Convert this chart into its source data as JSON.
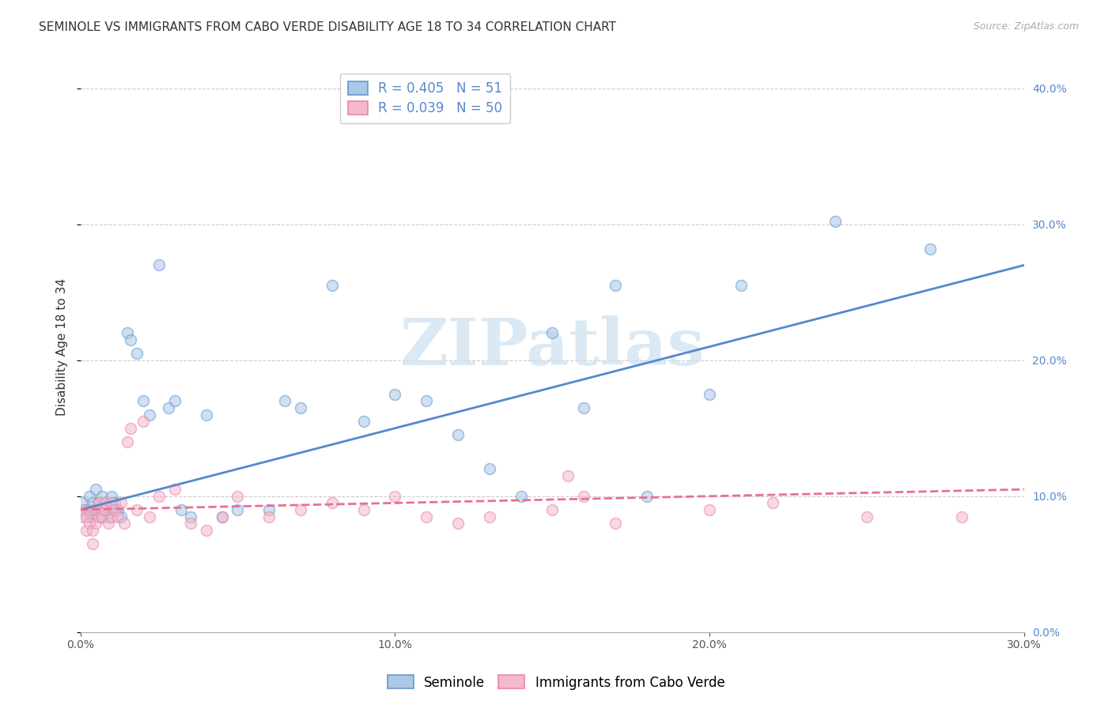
{
  "title": "SEMINOLE VS IMMIGRANTS FROM CABO VERDE DISABILITY AGE 18 TO 34 CORRELATION CHART",
  "source": "Source: ZipAtlas.com",
  "xlim": [
    0.0,
    0.3
  ],
  "ylim": [
    0.0,
    0.42
  ],
  "ylabel": "Disability Age 18 to 34",
  "legend_blue_R": "0.405",
  "legend_blue_N": "51",
  "legend_pink_R": "0.039",
  "legend_pink_N": "50",
  "seminole_x": [
    0.001,
    0.002,
    0.003,
    0.003,
    0.004,
    0.004,
    0.005,
    0.005,
    0.006,
    0.006,
    0.007,
    0.007,
    0.008,
    0.008,
    0.009,
    0.01,
    0.01,
    0.011,
    0.012,
    0.013,
    0.015,
    0.016,
    0.018,
    0.02,
    0.022,
    0.025,
    0.028,
    0.03,
    0.032,
    0.035,
    0.04,
    0.045,
    0.05,
    0.06,
    0.065,
    0.07,
    0.08,
    0.09,
    0.1,
    0.11,
    0.12,
    0.13,
    0.14,
    0.15,
    0.16,
    0.17,
    0.18,
    0.2,
    0.21,
    0.24,
    0.27
  ],
  "seminole_y": [
    0.095,
    0.09,
    0.085,
    0.1,
    0.085,
    0.095,
    0.09,
    0.105,
    0.095,
    0.09,
    0.085,
    0.1,
    0.09,
    0.095,
    0.085,
    0.09,
    0.1,
    0.095,
    0.09,
    0.085,
    0.22,
    0.215,
    0.205,
    0.17,
    0.16,
    0.27,
    0.165,
    0.17,
    0.09,
    0.085,
    0.16,
    0.085,
    0.09,
    0.09,
    0.17,
    0.165,
    0.255,
    0.155,
    0.175,
    0.17,
    0.145,
    0.12,
    0.1,
    0.22,
    0.165,
    0.255,
    0.1,
    0.175,
    0.255,
    0.302,
    0.282
  ],
  "cabo_x": [
    0.001,
    0.001,
    0.002,
    0.002,
    0.003,
    0.003,
    0.004,
    0.004,
    0.005,
    0.005,
    0.006,
    0.006,
    0.007,
    0.007,
    0.008,
    0.008,
    0.009,
    0.01,
    0.01,
    0.011,
    0.012,
    0.013,
    0.014,
    0.015,
    0.016,
    0.018,
    0.02,
    0.022,
    0.025,
    0.03,
    0.035,
    0.04,
    0.045,
    0.05,
    0.06,
    0.07,
    0.08,
    0.09,
    0.1,
    0.11,
    0.12,
    0.13,
    0.15,
    0.155,
    0.16,
    0.17,
    0.2,
    0.22,
    0.25,
    0.28
  ],
  "cabo_y": [
    0.085,
    0.09,
    0.075,
    0.085,
    0.08,
    0.09,
    0.065,
    0.075,
    0.08,
    0.09,
    0.085,
    0.095,
    0.09,
    0.085,
    0.09,
    0.095,
    0.08,
    0.085,
    0.095,
    0.09,
    0.085,
    0.095,
    0.08,
    0.14,
    0.15,
    0.09,
    0.155,
    0.085,
    0.1,
    0.105,
    0.08,
    0.075,
    0.085,
    0.1,
    0.085,
    0.09,
    0.095,
    0.09,
    0.1,
    0.085,
    0.08,
    0.085,
    0.09,
    0.115,
    0.1,
    0.08,
    0.09,
    0.095,
    0.085,
    0.085
  ],
  "seminole_line_x": [
    0.0,
    0.3
  ],
  "seminole_line_y": [
    0.09,
    0.27
  ],
  "cabo_line_x": [
    0.0,
    0.3
  ],
  "cabo_line_y": [
    0.09,
    0.105
  ],
  "scatter_size": 100,
  "scatter_alpha": 0.55,
  "scatter_linewidth": 1.2,
  "seminole_face_color": "#aac8e8",
  "seminole_edge_color": "#6699cc",
  "cabo_face_color": "#f5b8cc",
  "cabo_edge_color": "#e888a8",
  "blue_line_color": "#5588cc",
  "pink_line_color": "#e87090",
  "grid_color": "#cccccc",
  "right_tick_color": "#5588cc",
  "watermark_color": "#cce0f0",
  "title_fontsize": 11,
  "tick_fontsize": 10,
  "ylabel_fontsize": 11,
  "legend_fontsize": 12,
  "source_fontsize": 9
}
